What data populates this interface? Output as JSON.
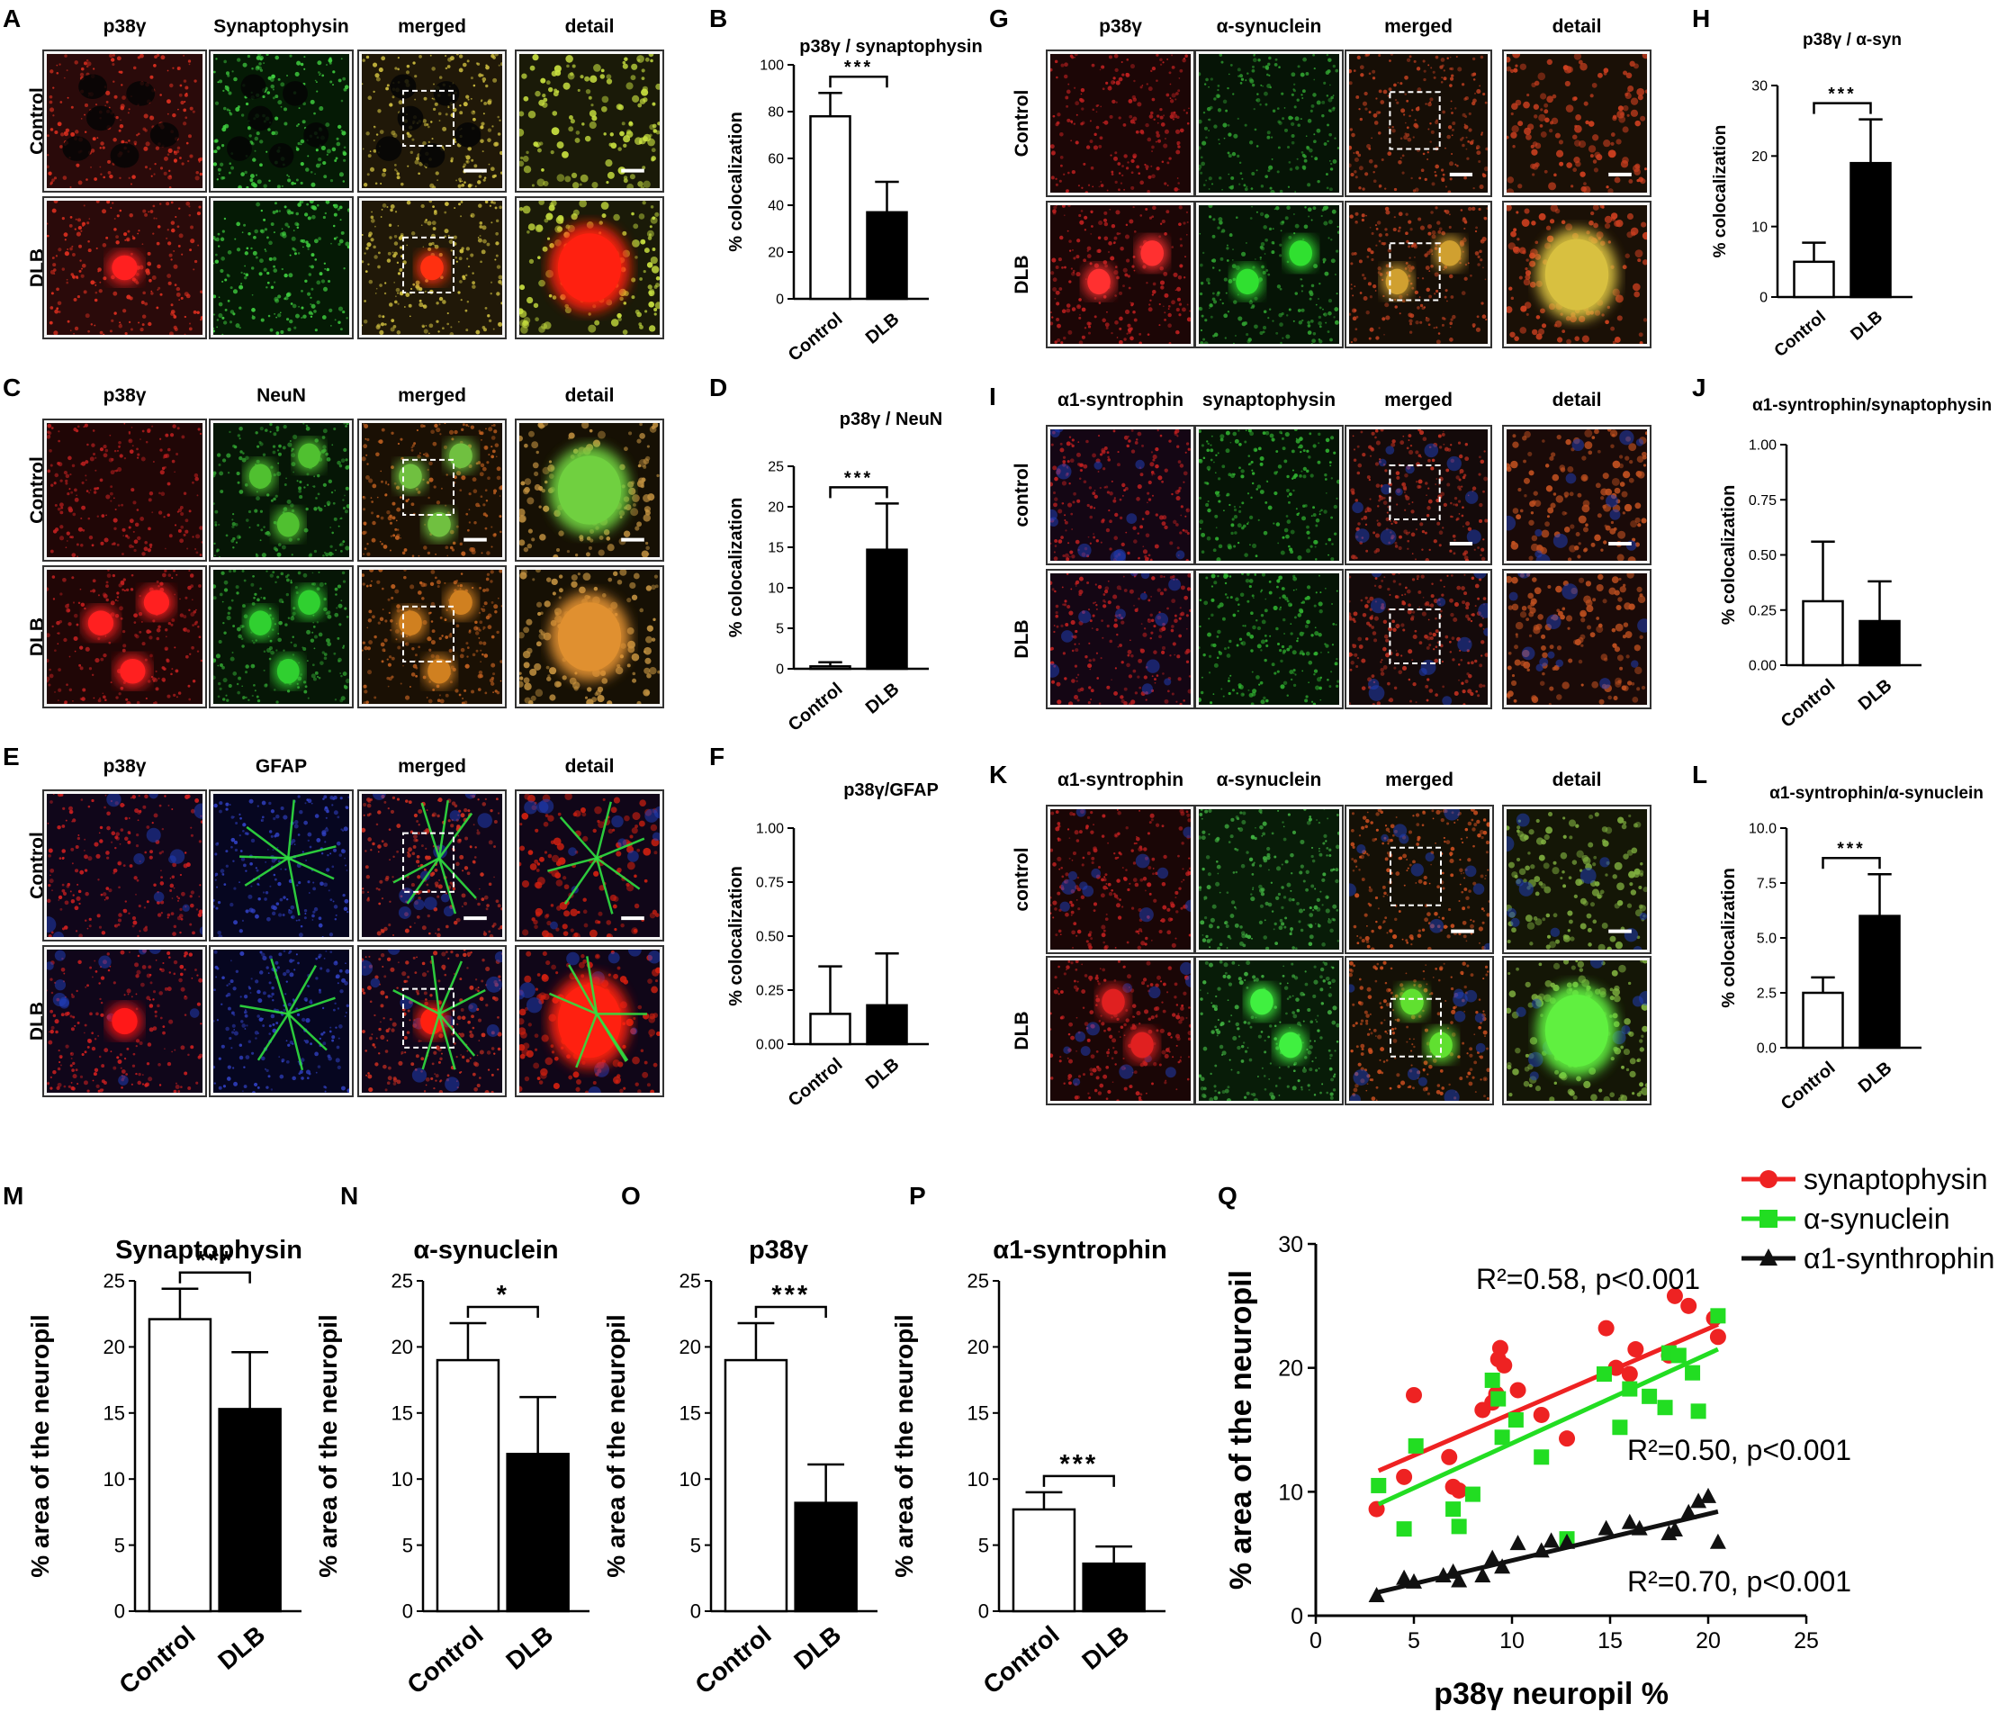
{
  "micrographs": [
    {
      "letter": "A",
      "cols": [
        "p38γ",
        "Synaptophysin",
        "merged",
        "detail"
      ],
      "rows": [
        "Control",
        "DLB"
      ],
      "scheme": "syn"
    },
    {
      "letter": "C",
      "cols": [
        "p38γ",
        "NeuN",
        "merged",
        "detail"
      ],
      "rows": [
        "Control",
        "DLB"
      ],
      "scheme": "neun"
    },
    {
      "letter": "E",
      "cols": [
        "p38γ",
        "GFAP",
        "merged",
        "detail"
      ],
      "rows": [
        "Control",
        "DLB"
      ],
      "scheme": "gfap"
    },
    {
      "letter": "G",
      "cols": [
        "p38γ",
        "α-synuclein",
        "merged",
        "detail"
      ],
      "rows": [
        "Control",
        "DLB"
      ],
      "scheme": "asyn"
    },
    {
      "letter": "I",
      "cols": [
        "α1-syntrophin",
        "synaptophysin",
        "merged",
        "detail"
      ],
      "rows": [
        "control",
        "DLB"
      ],
      "scheme": "syntro"
    },
    {
      "letter": "K",
      "cols": [
        "α1-syntrophin",
        "α-synuclein",
        "merged",
        "detail"
      ],
      "rows": [
        "control",
        "DLB"
      ],
      "scheme": "syntro_asyn"
    }
  ],
  "chart_data": [
    {
      "panel": "B",
      "type": "bar",
      "title": "p38γ / synaptophysin",
      "ylabel": "% colocalization",
      "categories": [
        "Control",
        "DLB"
      ],
      "values": [
        78,
        37
      ],
      "errors": [
        10,
        13
      ],
      "ylim": [
        0,
        100
      ],
      "yticks": [
        "0",
        "20",
        "40",
        "60",
        "80",
        "100"
      ],
      "significance": "***"
    },
    {
      "panel": "D",
      "type": "bar",
      "title": "p38γ / NeuN",
      "ylabel": "% colocalization",
      "categories": [
        "Control",
        "DLB"
      ],
      "values": [
        0.3,
        14.7
      ],
      "errors": [
        0.5,
        5.7
      ],
      "ylim": [
        0,
        25
      ],
      "yticks": [
        "0",
        "5",
        "10",
        "15",
        "20",
        "25"
      ],
      "significance": "***"
    },
    {
      "panel": "F",
      "type": "bar",
      "title": "p38γ/GFAP",
      "ylabel": "% colocalization",
      "categories": [
        "Control",
        "DLB"
      ],
      "values": [
        0.14,
        0.18
      ],
      "errors": [
        0.22,
        0.24
      ],
      "ylim": [
        0,
        1
      ],
      "yticks": [
        "0.00",
        "0.25",
        "0.50",
        "0.75",
        "1.00"
      ],
      "significance": ""
    },
    {
      "panel": "H",
      "type": "bar",
      "title": "p38γ / α-syn",
      "ylabel": "% colocalization",
      "categories": [
        "Control",
        "DLB"
      ],
      "values": [
        5,
        19
      ],
      "errors": [
        2.7,
        6.2
      ],
      "ylim": [
        0,
        30
      ],
      "yticks": [
        "0",
        "10",
        "20",
        "30"
      ],
      "significance": "***"
    },
    {
      "panel": "J",
      "type": "bar",
      "title": "α1-syntrophin/synaptophysin",
      "ylabel": "% colocalization",
      "categories": [
        "Control",
        "DLB"
      ],
      "values": [
        0.29,
        0.2
      ],
      "errors": [
        0.27,
        0.18
      ],
      "ylim": [
        0,
        1
      ],
      "yticks": [
        "0.00",
        "0.25",
        "0.50",
        "0.75",
        "1.00"
      ],
      "significance": ""
    },
    {
      "panel": "L",
      "type": "bar",
      "title": "α1-syntrophin/α-synuclein",
      "ylabel": "% colocalization",
      "categories": [
        "Control",
        "DLB"
      ],
      "values": [
        2.5,
        6
      ],
      "errors": [
        0.7,
        1.9
      ],
      "ylim": [
        0,
        10
      ],
      "yticks": [
        "0.0",
        "2.5",
        "5.0",
        "7.5",
        "10.0"
      ],
      "significance": "***"
    },
    {
      "panel": "M",
      "type": "bar",
      "title": "Synaptophysin",
      "ylabel": "% area of the neuropil",
      "categories": [
        "Control",
        "DLB"
      ],
      "values": [
        22.1,
        15.3
      ],
      "errors": [
        2.3,
        4.3
      ],
      "ylim": [
        0,
        25
      ],
      "yticks": [
        "0",
        "5",
        "10",
        "15",
        "20",
        "25"
      ],
      "significance": "***"
    },
    {
      "panel": "N",
      "type": "bar",
      "title": "α-synuclein",
      "ylabel": "% area of the neuropil",
      "categories": [
        "Control",
        "DLB"
      ],
      "values": [
        19,
        11.9
      ],
      "errors": [
        2.8,
        4.3
      ],
      "ylim": [
        0,
        25
      ],
      "yticks": [
        "0",
        "5",
        "10",
        "15",
        "20",
        "25"
      ],
      "significance": "*"
    },
    {
      "panel": "O",
      "type": "bar",
      "title": "p38γ",
      "ylabel": "% area of the neuropil",
      "categories": [
        "Control",
        "DLB"
      ],
      "values": [
        19,
        8.2
      ],
      "errors": [
        2.8,
        2.9
      ],
      "ylim": [
        0,
        25
      ],
      "yticks": [
        "0",
        "5",
        "10",
        "15",
        "20",
        "25"
      ],
      "significance": "***"
    },
    {
      "panel": "P",
      "type": "bar",
      "title": "α1-syntrophin",
      "ylabel": "% area of the neuropil",
      "categories": [
        "Control",
        "DLB"
      ],
      "values": [
        7.7,
        3.6
      ],
      "errors": [
        1.3,
        1.3
      ],
      "ylim": [
        0,
        25
      ],
      "yticks": [
        "0",
        "5",
        "10",
        "15",
        "20",
        "25"
      ],
      "significance": "***"
    },
    {
      "panel": "Q",
      "type": "scatter",
      "xlabel": "p38γ neuropil %",
      "ylabel": "% area of the neuropil",
      "xlim": [
        0,
        25
      ],
      "ylim": [
        0,
        30
      ],
      "xticks": [
        "0",
        "5",
        "10",
        "15",
        "20",
        "25"
      ],
      "yticks": [
        "0",
        "10",
        "20",
        "30"
      ],
      "legend_position": "top-right",
      "series": [
        {
          "name": "synaptophysin",
          "color": "#ee2222",
          "marker": "circle",
          "annotation": "R²=0.58, p<0.001",
          "fit": [
            [
              3.2,
              11.7
            ],
            [
              20.5,
              23.5
            ]
          ],
          "points": [
            [
              3.1,
              8.6
            ],
            [
              4.5,
              11.2
            ],
            [
              5,
              17.8
            ],
            [
              6.8,
              12.8
            ],
            [
              7,
              10.4
            ],
            [
              7.3,
              10.1
            ],
            [
              8.5,
              16.6
            ],
            [
              9,
              17.2
            ],
            [
              9.2,
              17.9
            ],
            [
              9.3,
              20.7
            ],
            [
              9.4,
              21.6
            ],
            [
              9.6,
              20.2
            ],
            [
              10.3,
              18.2
            ],
            [
              11.5,
              16.2
            ],
            [
              12.8,
              14.3
            ],
            [
              14.8,
              23.2
            ],
            [
              15.3,
              20
            ],
            [
              16,
              19.5
            ],
            [
              16.3,
              21.5
            ],
            [
              18,
              21
            ],
            [
              18.3,
              25.8
            ],
            [
              19,
              25
            ],
            [
              20.3,
              24
            ],
            [
              20.5,
              22.5
            ]
          ]
        },
        {
          "name": "α-synuclein",
          "color": "#22dd22",
          "marker": "square",
          "annotation": "R²=0.50, p<0.001",
          "fit": [
            [
              3.2,
              9
            ],
            [
              20.5,
              21.5
            ]
          ],
          "points": [
            [
              3.2,
              10.5
            ],
            [
              4.5,
              7
            ],
            [
              5.1,
              13.7
            ],
            [
              7,
              8.6
            ],
            [
              7.3,
              7.2
            ],
            [
              8,
              9.8
            ],
            [
              9,
              19
            ],
            [
              9.3,
              17.5
            ],
            [
              9.5,
              14.4
            ],
            [
              10.2,
              15.8
            ],
            [
              11.5,
              12.8
            ],
            [
              12.8,
              6.2
            ],
            [
              14.7,
              19.5
            ],
            [
              15.5,
              15.2
            ],
            [
              16,
              18.3
            ],
            [
              17,
              17.7
            ],
            [
              17.8,
              16.8
            ],
            [
              18,
              21.2
            ],
            [
              18.5,
              21
            ],
            [
              19.2,
              19.6
            ],
            [
              19.5,
              16.5
            ],
            [
              20.5,
              24.2
            ]
          ]
        },
        {
          "name": "α1-synthrophin",
          "color": "#111111",
          "marker": "triangle",
          "annotation": "R²=0.70, p<0.001",
          "fit": [
            [
              3.2,
              1.9
            ],
            [
              20.5,
              8.4
            ]
          ],
          "points": [
            [
              3.1,
              1.6
            ],
            [
              4.5,
              3
            ],
            [
              5,
              2.7
            ],
            [
              6.5,
              3.2
            ],
            [
              7,
              3.5
            ],
            [
              7.3,
              2.8
            ],
            [
              8.5,
              3.2
            ],
            [
              9,
              4.6
            ],
            [
              9.5,
              3.9
            ],
            [
              10.3,
              5.8
            ],
            [
              11.5,
              5.2
            ],
            [
              12,
              6
            ],
            [
              12.8,
              5.9
            ],
            [
              14.8,
              7
            ],
            [
              16,
              7.5
            ],
            [
              16.5,
              7
            ],
            [
              18,
              6.6
            ],
            [
              18.3,
              6.9
            ],
            [
              19,
              8.3
            ],
            [
              19.5,
              9.2
            ],
            [
              20,
              9.6
            ],
            [
              20.5,
              5.9
            ]
          ]
        }
      ]
    }
  ]
}
